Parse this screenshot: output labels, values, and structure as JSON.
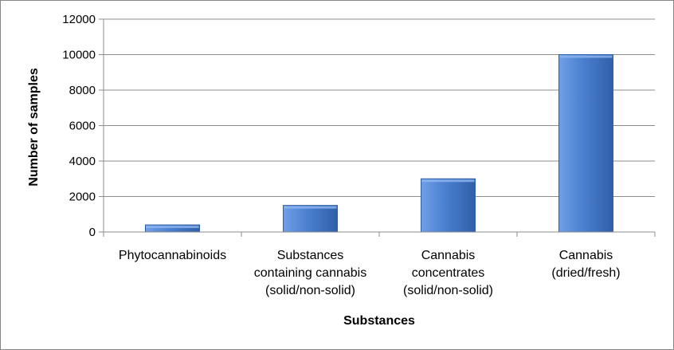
{
  "chart_data": {
    "type": "bar",
    "categories": [
      [
        "Phytocannabinoids"
      ],
      [
        "Substances",
        "containing cannabis",
        "(solid/non-solid)"
      ],
      [
        "Cannabis",
        "concentrates",
        "(solid/non-solid)"
      ],
      [
        "Cannabis",
        "(dried/fresh)"
      ]
    ],
    "values": [
      400,
      1500,
      3000,
      10000
    ],
    "xlabel": "Substances",
    "ylabel": "Number of samples",
    "ylim": [
      0,
      12000
    ],
    "yticks": [
      "0",
      "2000",
      "4000",
      "6000",
      "8000",
      "10000",
      "12000"
    ],
    "grid": true,
    "legend": "none",
    "colors": {
      "bar": "#4a7fd0",
      "bar_light": "#6f9fe6",
      "bar_dark": "#2f5fa8",
      "grid": "#8c8c8c",
      "frame": "#868686"
    }
  }
}
